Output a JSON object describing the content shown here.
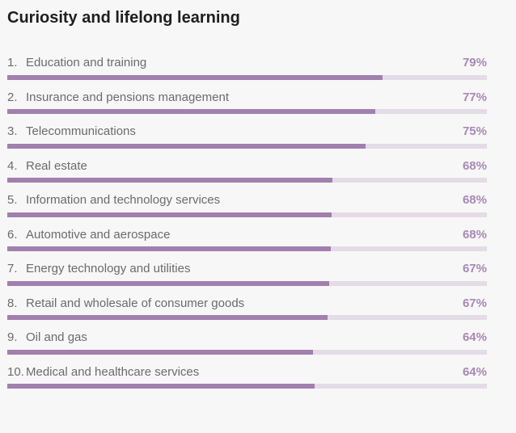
{
  "colors": {
    "background": "#f7f7f7",
    "bar_fill": "#a17fae",
    "bar_track": "#e3dbe6",
    "value_text": "#a988b4",
    "label_text": "#6b6b6b"
  },
  "chart_data": {
    "type": "bar",
    "orientation": "horizontal",
    "title": "Curiosity and lifelong learning",
    "xlim": [
      0,
      100
    ],
    "grid": false,
    "ranks": [
      "1.",
      "2.",
      "3.",
      "4.",
      "5.",
      "6.",
      "7.",
      "8.",
      "9.",
      "10."
    ],
    "categories": [
      "Education and training",
      "Insurance and pensions management",
      "Telecommunications",
      "Real estate",
      "Information and technology services",
      "Automotive and aerospace",
      "Energy technology and utilities",
      "Retail and wholesale of consumer goods",
      "Oil and gas",
      "Medical and healthcare services"
    ],
    "values": [
      79,
      77,
      75,
      68,
      68,
      68,
      67,
      67,
      64,
      64
    ],
    "value_labels": [
      "79%",
      "77%",
      "75%",
      "68%",
      "68%",
      "68%",
      "67%",
      "67%",
      "64%",
      "64%"
    ],
    "bar_fill_fractions": [
      0.783,
      0.768,
      0.747,
      0.678,
      0.677,
      0.674,
      0.672,
      0.668,
      0.637,
      0.64
    ]
  }
}
